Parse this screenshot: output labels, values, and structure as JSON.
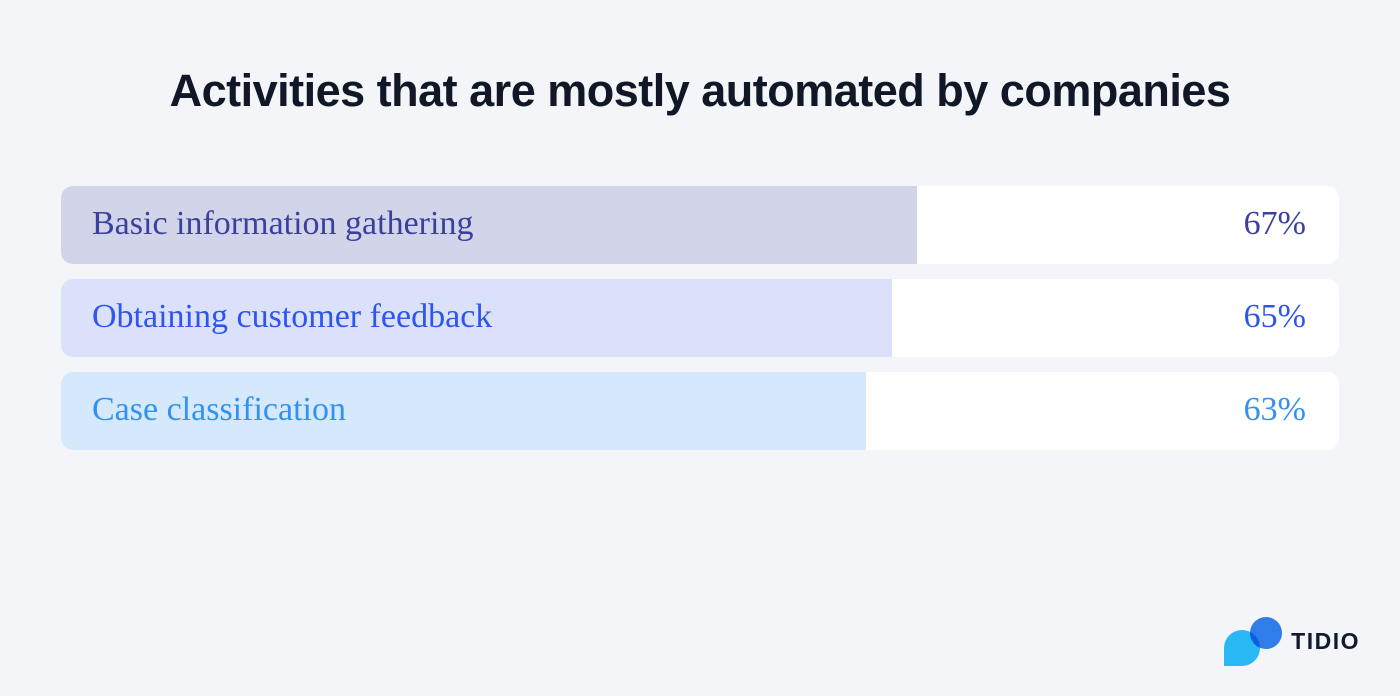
{
  "page": {
    "background": "#f4f5f8"
  },
  "header": {
    "title": "Activities that are mostly automated by companies"
  },
  "chart_data": {
    "type": "bar",
    "orientation": "horizontal",
    "title": "Activities that are mostly automated by companies",
    "categories": [
      "Basic information gathering",
      "Obtaining customer feedback",
      "Case classification"
    ],
    "values": [
      67,
      65,
      63
    ],
    "value_suffix": "%",
    "xlim": [
      0,
      100
    ],
    "grid": false,
    "legend": false,
    "track_color": "#ffffff",
    "bars": [
      {
        "label": "Basic information gathering",
        "value": 67,
        "display_value": "67%",
        "fill_color": "#d2d5e9",
        "text_color": "#3b3f9d"
      },
      {
        "label": "Obtaining customer feedback",
        "value": 65,
        "display_value": "65%",
        "fill_color": "#dbe1fb",
        "text_color": "#2e55ec"
      },
      {
        "label": "Case classification",
        "value": 63,
        "display_value": "63%",
        "fill_color": "#d5e8fc",
        "text_color": "#3292f1"
      }
    ]
  },
  "footer": {
    "logo_text": "TIDIO",
    "logo_colors": {
      "bubble_cyan": "#2bc0fb",
      "circle_blue": "#2e7de9",
      "text": "#111b2e"
    }
  }
}
